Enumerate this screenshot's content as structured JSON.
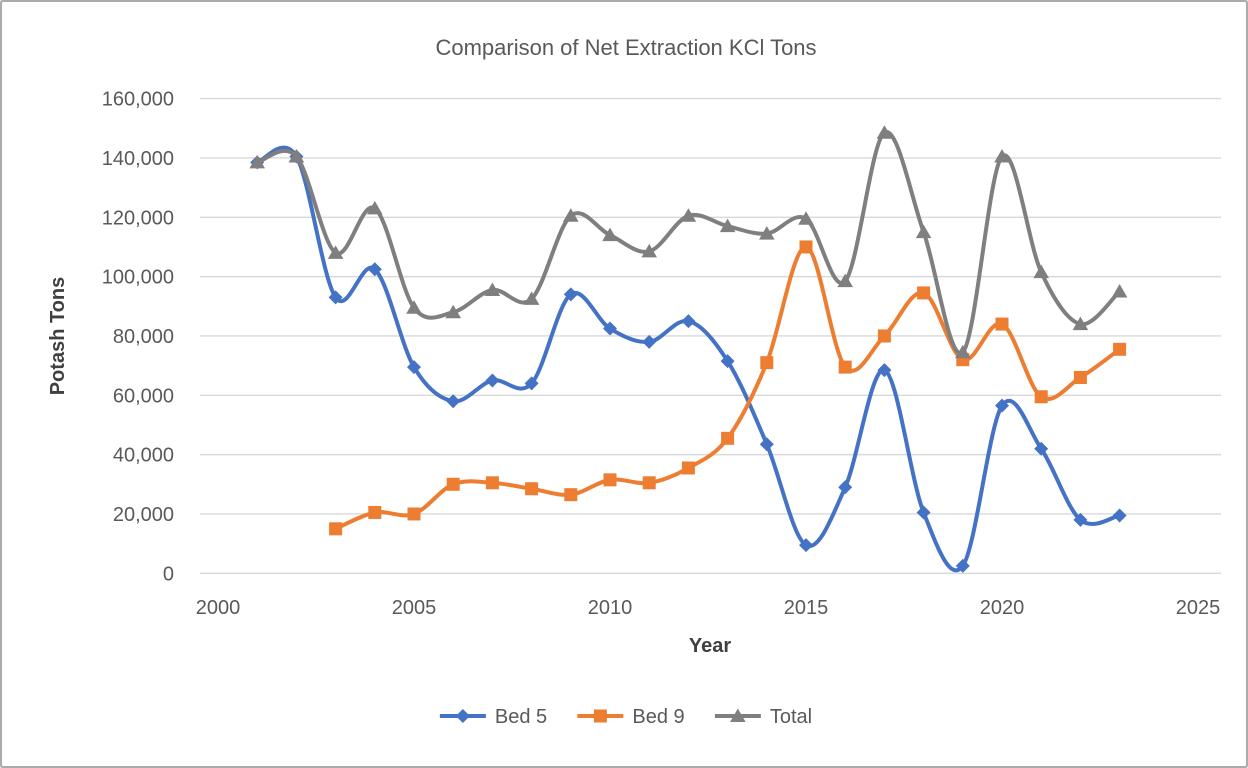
{
  "page": {
    "background": "#FFFFFF",
    "border_color": "#ABABAB",
    "grid_color": "#D9D9D9",
    "text_color": "#595959"
  },
  "chart_data": {
    "type": "line",
    "title": "Comparison of Net Extraction KCl Tons",
    "xlabel": "Year",
    "ylabel": "Potash Tons",
    "smooth_lines": true,
    "grid": "horizontal",
    "legend_position": "bottom",
    "x": [
      2001,
      2002,
      2003,
      2004,
      2005,
      2006,
      2007,
      2008,
      2009,
      2010,
      2011,
      2012,
      2013,
      2014,
      2015,
      2016,
      2017,
      2018,
      2019,
      2020,
      2021,
      2022,
      2023
    ],
    "series": [
      {
        "name": "Bed 5",
        "color": "#4472C4",
        "marker": "diamond",
        "values": [
          138500,
          140500,
          93000,
          102500,
          69500,
          58000,
          65000,
          64000,
          94000,
          82500,
          78000,
          85000,
          71500,
          43500,
          9500,
          29000,
          68500,
          20500,
          2500,
          56500,
          42000,
          18000,
          19500
        ]
      },
      {
        "name": "Bed 9",
        "color": "#ED7D31",
        "marker": "square",
        "values": [
          null,
          null,
          15000,
          20500,
          20000,
          30000,
          30500,
          28500,
          26500,
          31500,
          30500,
          35500,
          45500,
          71000,
          110000,
          69500,
          80000,
          94500,
          72000,
          84000,
          59500,
          66000,
          75500
        ]
      },
      {
        "name": "Total",
        "color": "#7F7F7F",
        "marker": "triangle",
        "values": [
          138500,
          140500,
          108000,
          123000,
          89500,
          88000,
          95500,
          92500,
          120500,
          114000,
          108500,
          120500,
          117000,
          114500,
          119500,
          98500,
          148500,
          115000,
          74500,
          140500,
          101500,
          84000,
          95000
        ]
      }
    ],
    "x_axis": {
      "min": 2000,
      "max": 2025,
      "step": 5,
      "tick_values": [
        2000,
        2005,
        2010,
        2015,
        2020,
        2025
      ],
      "tick_labels": [
        "2000",
        "2005",
        "2010",
        "2015",
        "2020",
        "2025"
      ]
    },
    "y_axis": {
      "min": 0,
      "max": 160000,
      "step": 20000,
      "tick_values": [
        0,
        20000,
        40000,
        60000,
        80000,
        100000,
        120000,
        140000,
        160000
      ],
      "tick_labels": [
        "0",
        "20,000",
        "40,000",
        "60,000",
        "80,000",
        "100,000",
        "120,000",
        "140,000",
        "160,000"
      ]
    }
  }
}
